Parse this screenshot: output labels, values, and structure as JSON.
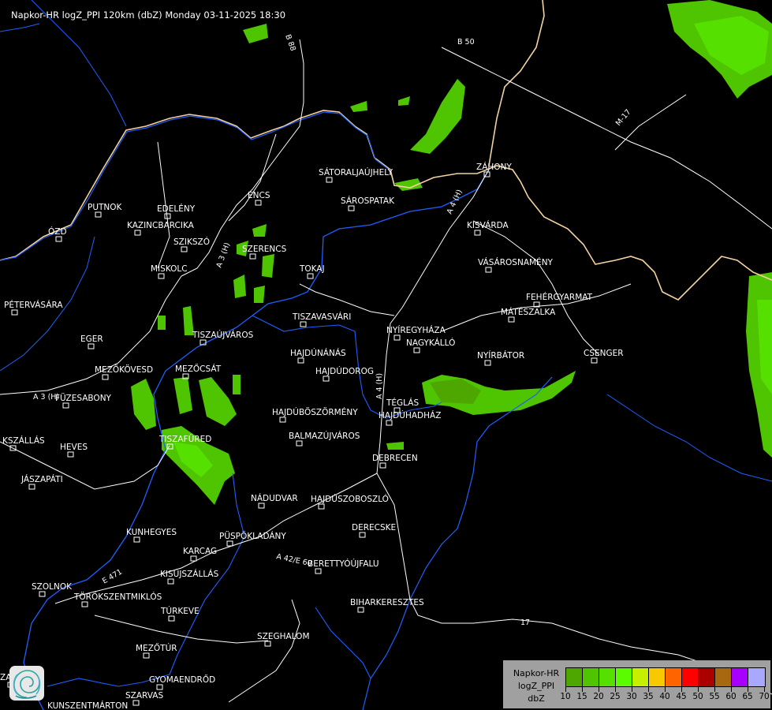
{
  "title": "Napkor-HR logZ_PPI 120km (dbZ) Monday 03-11-2025 18:30",
  "legend": {
    "line1": "Napkor-HR",
    "line2": "logZ_PPI",
    "line3": "dbZ",
    "ticks": [
      "10",
      "15",
      "20",
      "25",
      "30",
      "35",
      "40",
      "45",
      "50",
      "55",
      "60",
      "65",
      "70"
    ],
    "colors": [
      "#4ea600",
      "#4fc400",
      "#55e000",
      "#5cfc00",
      "#c6f000",
      "#f8c800",
      "#ff6400",
      "#ff0000",
      "#aa0000",
      "#a86810",
      "#a800ff",
      "#a8a8ff"
    ]
  },
  "cities": [
    "SÁTORALJAÚJHELY",
    "ZÁHONY",
    "SÁROSPATAK",
    "PUTNOK",
    "EDELÉNY",
    "ENCS",
    "KAZINCBARCIKA",
    "KISVÁRDA",
    "ÓZD",
    "SZIKSZÓ",
    "SZERENCS",
    "TOKAJ",
    "VÁSÁROSNAMÉNY",
    "MISKOLC",
    "FEHÉRGYARMAT",
    "PÉTERVÁSÁRA",
    "MÁTÉSZALKA",
    "TISZAVASVÁRI",
    "NYÍREGYHÁZA",
    "EGER",
    "NAGYKÁLLÓ",
    "TISZAÚJVÁROS",
    "HAJDÚNÁNÁS",
    "NYÍRBÁTOR",
    "CSENGER",
    "MEZŐKÖVESD",
    "MEZŐCSÁT",
    "HAJDÚDOROG",
    "FÜZESABONY",
    "TÉGLÁS",
    "HAJDÚBÖSZÖRMÉNY",
    "HAJDÚHADHÁZ",
    "BALMAZÚJVÁROS",
    "TISZAFÜRED",
    "KSZÁLLÁS",
    "HEVES",
    "DEBRECEN",
    "JÁSZAPÁTI",
    "NÁDUDVAR",
    "HAJDÚSZOBOSZLÓ",
    "DERECSKE",
    "KUNHEGYES",
    "KARCAG",
    "PÜSPÖKLADÁNY",
    "BERETTYÓÚJFALU",
    "KISÚJSZÁLLÁS",
    "SZOLNOK",
    "TÖRÖKSZENTMIKLÓS",
    "BIHARKERESZTES",
    "TÚRKEVE",
    "SZEGHALOM",
    "MEZŐTÚR",
    "GYOMAENDRŐD",
    "SZARVAS",
    "KUNSZENTMÁRTON",
    "ZA"
  ],
  "roads": [
    "B 88",
    "B 50",
    "M-17",
    "A 4 (H)",
    "A 3 (H)",
    "A 3 (H)",
    "A 4 (H)",
    "A 42/E 60",
    "E 471",
    "17"
  ],
  "colors": {
    "river": "#1f5fff",
    "border": "#f3d2a0",
    "road": "#ffffff",
    "radar_low": "#4ea600",
    "radar_mid": "#4fc400",
    "radar_high": "#55e000"
  }
}
